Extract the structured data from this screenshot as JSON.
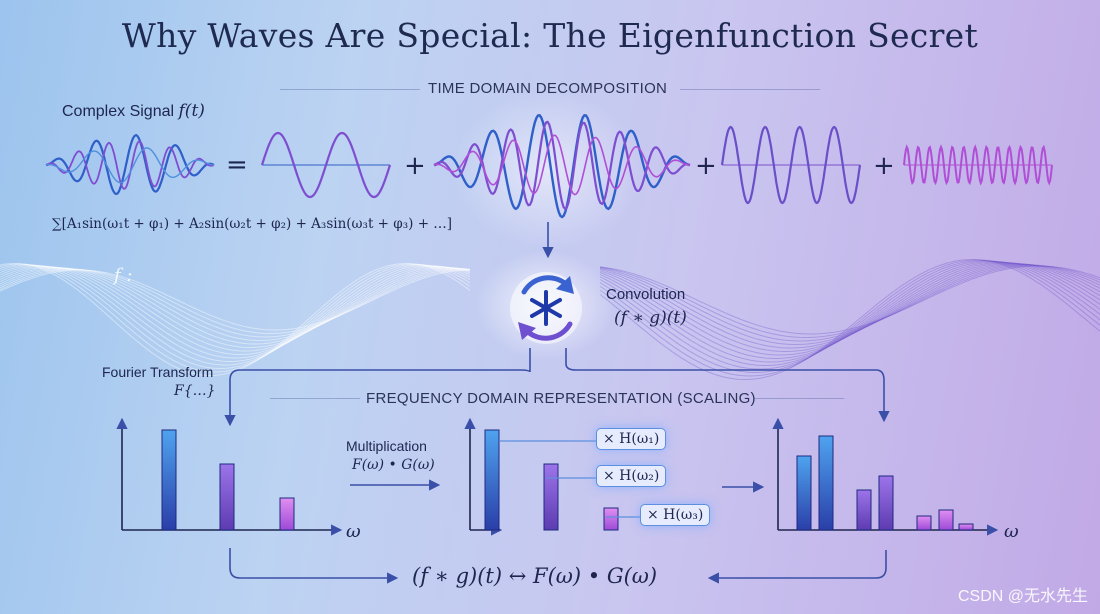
{
  "title": "Why Waves Are Special: The Eigenfunction Secret",
  "time_domain": {
    "heading": "TIME DOMAIN DECOMPOSITION",
    "signal_label": "Complex Signal",
    "signal_symbol": "f(t)",
    "equals": "=",
    "plus": "+",
    "sum_formula": "∑[A₁sin(ω₁t + φ₁) + A₂sin(ω₂t + φ₂) + A₃sin(ω₃t + φ₃) + …]"
  },
  "convolution": {
    "label": "Convolution",
    "formula": "(f ∗ g)(t)"
  },
  "background_glyph": "f :",
  "fourier": {
    "label": "Fourier Transform",
    "formula": "F{…}"
  },
  "frequency_domain": {
    "heading": "FREQUENCY DOMAIN REPRESENTATION (SCALING)",
    "multiplication_label": "Multiplication",
    "multiplication_formula": "F(ω) • G(ω)",
    "axis_label": "ω",
    "scale_factors": [
      "× H(ω₁)",
      "× H(ω₂)",
      "× H(ω₃)"
    ]
  },
  "bottom_formula": "(f ∗ g)(t) ↔ F(ω) • G(ω)",
  "watermark": "CSDN @无水先生",
  "colors": {
    "blue": "#2f5fc8",
    "violet": "#7d4fd0",
    "magenta": "#b04fd6",
    "ink": "#1e2650",
    "arrow": "#3a4fa8"
  },
  "icons": [
    "snowflake-convolution-icon",
    "cycle-arrows-icon"
  ]
}
